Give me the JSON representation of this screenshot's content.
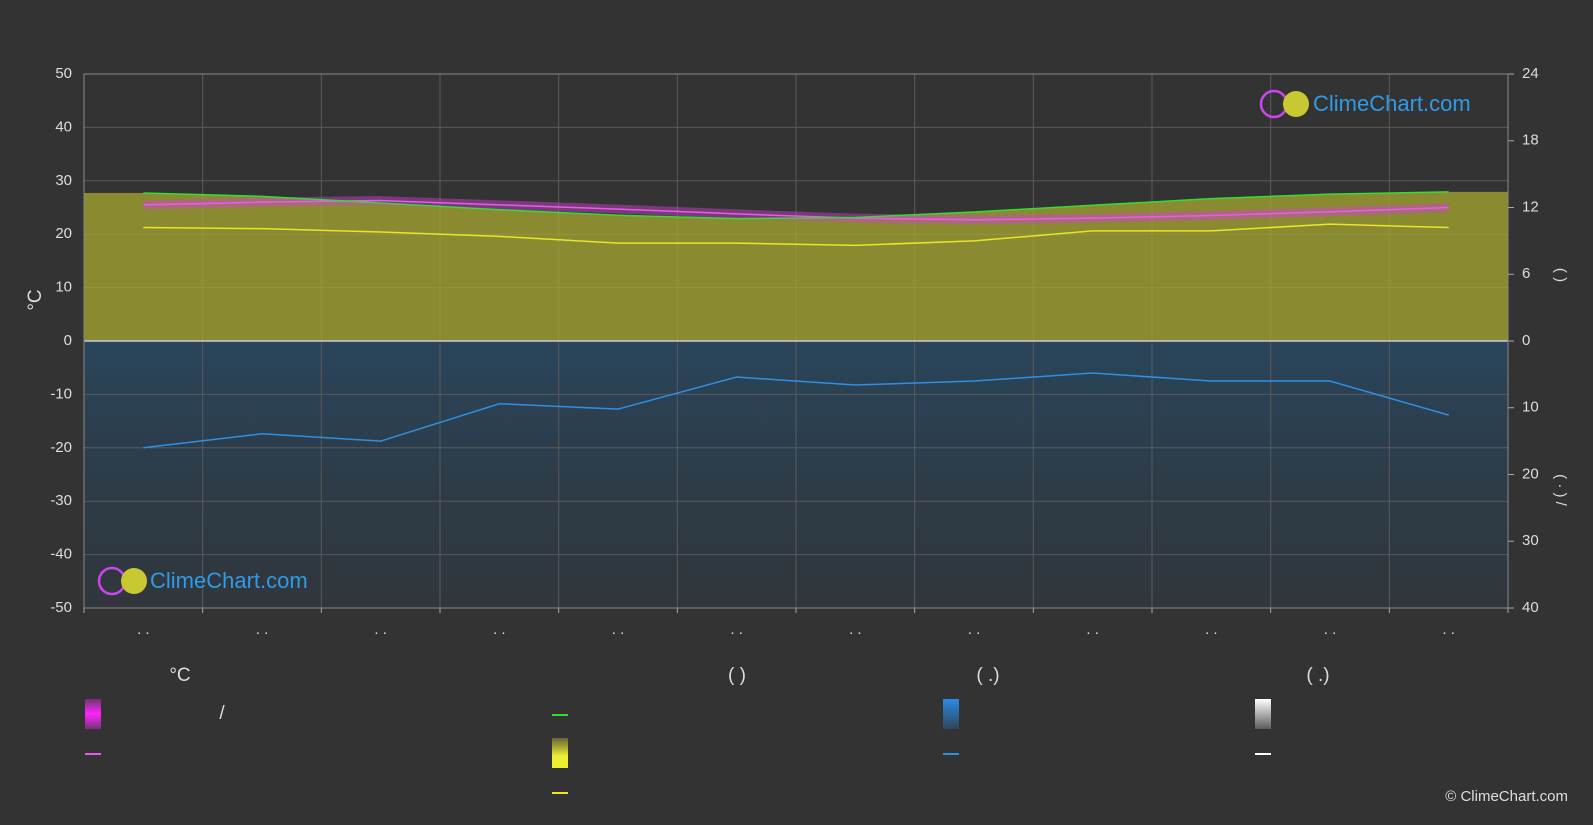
{
  "chart_data": {
    "type": "line",
    "categories": [
      ". .",
      ". .",
      ". .",
      ". .",
      ". .",
      ". .",
      ". .",
      ". .",
      ". .",
      ". .",
      ". .",
      ". ."
    ],
    "ylabel": "°C",
    "ylim": [
      -50,
      50
    ],
    "yticks": [
      -50,
      -40,
      -30,
      -20,
      -10,
      0,
      10,
      20,
      30,
      40,
      50
    ],
    "y2label": "(      )",
    "y2lim": [
      0,
      24
    ],
    "y2ticks": [
      0,
      6,
      12,
      18,
      24
    ],
    "y3label": "(  ·  )    /",
    "y3lim": [
      0,
      40
    ],
    "y3ticks": [
      10,
      20,
      30,
      40
    ],
    "grid": true,
    "series": [
      {
        "color": "#e85ce8",
        "values": [
          25.5,
          26.0,
          26.3,
          25.5,
          24.7,
          23.8,
          23.0,
          22.7,
          23.0,
          23.5,
          24.2,
          25.0
        ]
      },
      {
        "color": "#33dd33",
        "axis": "y2",
        "values": [
          13.3,
          13.0,
          12.4,
          11.8,
          11.3,
          11.0,
          11.1,
          11.6,
          12.2,
          12.8,
          13.2,
          13.4
        ]
      },
      {
        "color": "#e6e62a",
        "axis": "y2",
        "values": [
          10.2,
          10.1,
          9.8,
          9.4,
          8.8,
          8.8,
          8.6,
          9.0,
          9.9,
          9.9,
          10.5,
          10.2
        ]
      },
      {
        "color": "#2f8fe0",
        "axis": "y3",
        "values": [
          16.0,
          13.9,
          15.0,
          9.4,
          10.2,
          5.4,
          6.6,
          6.0,
          4.8,
          6.0,
          6.0,
          11.1
        ]
      }
    ]
  },
  "legend": {
    "headings": [
      "°C",
      "(          )",
      "(   .)",
      "(   .)"
    ],
    "text": "/"
  },
  "watermark": "ClimeChart.com",
  "copyright": "© ClimeChart.com"
}
